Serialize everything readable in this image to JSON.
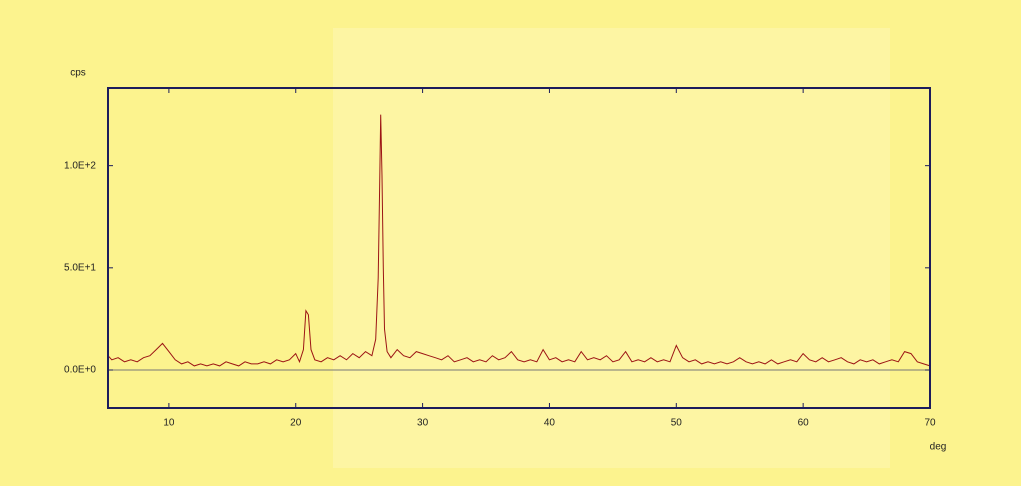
{
  "chart_data": {
    "type": "line",
    "y_label": "cps",
    "x_label": "deg",
    "xlim": [
      5.2,
      70
    ],
    "ylim": [
      -18.6,
      138
    ],
    "xticks": [
      10,
      20,
      30,
      40,
      50,
      60,
      70
    ],
    "yticks": [
      {
        "value": 0,
        "label": "0.0E+0"
      },
      {
        "value": 50,
        "label": "5.0E+1"
      },
      {
        "value": 100,
        "label": "1.0E+2"
      }
    ],
    "x": [
      5.2,
      5.5,
      6,
      6.5,
      7,
      7.5,
      8,
      8.5,
      9,
      9.5,
      10,
      10.5,
      11,
      11.5,
      12,
      12.5,
      13,
      13.5,
      14,
      14.5,
      15,
      15.5,
      16,
      16.5,
      17,
      17.5,
      18,
      18.5,
      19,
      19.5,
      20,
      20.3,
      20.6,
      20.8,
      21.0,
      21.2,
      21.5,
      22,
      22.5,
      23,
      23.5,
      24,
      24.5,
      25,
      25.5,
      26,
      26.3,
      26.5,
      26.6,
      26.7,
      26.8,
      26.9,
      27.0,
      27.2,
      27.5,
      28,
      28.5,
      29,
      29.5,
      30,
      30.5,
      31,
      31.5,
      32,
      32.5,
      33,
      33.5,
      34,
      34.5,
      35,
      35.5,
      36,
      36.5,
      37,
      37.5,
      38,
      38.5,
      39,
      39.5,
      40,
      40.5,
      41,
      41.5,
      42,
      42.5,
      43,
      43.5,
      44,
      44.5,
      45,
      45.5,
      46,
      46.5,
      47,
      47.5,
      48,
      48.5,
      49,
      49.5,
      50,
      50.5,
      51,
      51.5,
      52,
      52.5,
      53,
      53.5,
      54,
      54.5,
      55,
      55.5,
      56,
      56.5,
      57,
      57.5,
      58,
      58.5,
      59,
      59.5,
      60,
      60.5,
      61,
      61.5,
      62,
      62.5,
      63,
      63.5,
      64,
      64.5,
      65,
      65.5,
      66,
      66.5,
      67,
      67.5,
      68,
      68.5,
      69,
      69.5,
      70
    ],
    "series": [
      {
        "color": "#9c1414",
        "values": [
          7,
          5,
          6,
          4,
          5,
          4,
          6,
          7,
          10,
          13,
          9,
          5,
          3,
          4,
          2,
          3,
          2,
          3,
          2,
          4,
          3,
          2,
          4,
          3,
          3,
          4,
          3,
          5,
          4,
          5,
          8,
          4,
          10,
          29,
          27,
          10,
          5,
          4,
          6,
          5,
          7,
          5,
          8,
          6,
          9,
          7,
          15,
          45,
          85,
          125,
          95,
          50,
          20,
          9,
          6,
          10,
          7,
          6,
          9,
          8,
          7,
          6,
          5,
          7,
          4,
          5,
          6,
          4,
          5,
          4,
          7,
          5,
          6,
          9,
          5,
          4,
          5,
          4,
          10,
          5,
          6,
          4,
          5,
          4,
          9,
          5,
          6,
          5,
          7,
          4,
          5,
          9,
          4,
          5,
          4,
          6,
          4,
          5,
          4,
          12,
          6,
          4,
          5,
          3,
          4,
          3,
          4,
          3,
          4,
          6,
          4,
          3,
          4,
          3,
          5,
          3,
          4,
          5,
          4,
          8,
          5,
          4,
          6,
          4,
          5,
          6,
          4,
          3,
          5,
          4,
          5,
          3,
          4,
          5,
          4,
          9,
          8,
          4,
          3,
          2
        ]
      }
    ]
  }
}
